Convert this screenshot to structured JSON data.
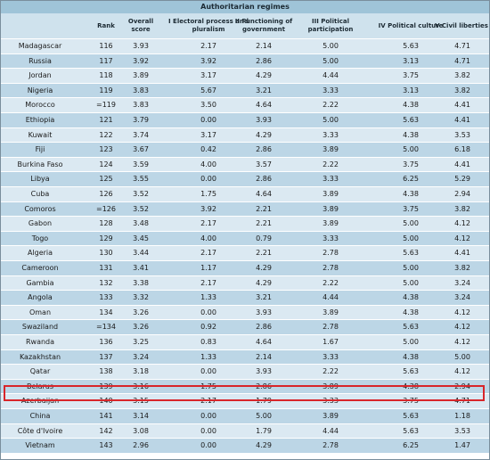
{
  "table": {
    "title": "Authoritarian regimes",
    "headers": {
      "rank": "Rank",
      "overall": "Overall score",
      "cat1": "I Electoral process and pluralism",
      "cat2": "II Functioning of government",
      "cat3": "III Political participation",
      "cat4": "IV Political culture",
      "cat5": "V Civil liberties"
    },
    "highlighted_country": "Belarus",
    "rows": [
      [
        "Madagascar",
        "116",
        "3.93",
        "2.17",
        "2.14",
        "5.00",
        "5.63",
        "4.71"
      ],
      [
        "Russia",
        "117",
        "3.92",
        "3.92",
        "2.86",
        "5.00",
        "3.13",
        "4.71"
      ],
      [
        "Jordan",
        "118",
        "3.89",
        "3.17",
        "4.29",
        "4.44",
        "3.75",
        "3.82"
      ],
      [
        "Nigeria",
        "119",
        "3.83",
        "5.67",
        "3.21",
        "3.33",
        "3.13",
        "3.82"
      ],
      [
        "Morocco",
        "=119",
        "3.83",
        "3.50",
        "4.64",
        "2.22",
        "4.38",
        "4.41"
      ],
      [
        "Ethiopia",
        "121",
        "3.79",
        "0.00",
        "3.93",
        "5.00",
        "5.63",
        "4.41"
      ],
      [
        "Kuwait",
        "122",
        "3.74",
        "3.17",
        "4.29",
        "3.33",
        "4.38",
        "3.53"
      ],
      [
        "Fiji",
        "123",
        "3.67",
        "0.42",
        "2.86",
        "3.89",
        "5.00",
        "6.18"
      ],
      [
        "Burkina Faso",
        "124",
        "3.59",
        "4.00",
        "3.57",
        "2.22",
        "3.75",
        "4.41"
      ],
      [
        "Libya",
        "125",
        "3.55",
        "0.00",
        "2.86",
        "3.33",
        "6.25",
        "5.29"
      ],
      [
        "Cuba",
        "126",
        "3.52",
        "1.75",
        "4.64",
        "3.89",
        "4.38",
        "2.94"
      ],
      [
        "Comoros",
        "=126",
        "3.52",
        "3.92",
        "2.21",
        "3.89",
        "3.75",
        "3.82"
      ],
      [
        "Gabon",
        "128",
        "3.48",
        "2.17",
        "2.21",
        "3.89",
        "5.00",
        "4.12"
      ],
      [
        "Togo",
        "129",
        "3.45",
        "4.00",
        "0.79",
        "3.33",
        "5.00",
        "4.12"
      ],
      [
        "Algeria",
        "130",
        "3.44",
        "2.17",
        "2.21",
        "2.78",
        "5.63",
        "4.41"
      ],
      [
        "Cameroon",
        "131",
        "3.41",
        "1.17",
        "4.29",
        "2.78",
        "5.00",
        "3.82"
      ],
      [
        "Gambia",
        "132",
        "3.38",
        "2.17",
        "4.29",
        "2.22",
        "5.00",
        "3.24"
      ],
      [
        "Angola",
        "133",
        "3.32",
        "1.33",
        "3.21",
        "4.44",
        "4.38",
        "3.24"
      ],
      [
        "Oman",
        "134",
        "3.26",
        "0.00",
        "3.93",
        "3.89",
        "4.38",
        "4.12"
      ],
      [
        "Swaziland",
        "=134",
        "3.26",
        "0.92",
        "2.86",
        "2.78",
        "5.63",
        "4.12"
      ],
      [
        "Rwanda",
        "136",
        "3.25",
        "0.83",
        "4.64",
        "1.67",
        "5.00",
        "4.12"
      ],
      [
        "Kazakhstan",
        "137",
        "3.24",
        "1.33",
        "2.14",
        "3.33",
        "4.38",
        "5.00"
      ],
      [
        "Qatar",
        "138",
        "3.18",
        "0.00",
        "3.93",
        "2.22",
        "5.63",
        "4.12"
      ],
      [
        "Belarus",
        "139",
        "3.16",
        "1.75",
        "2.86",
        "3.89",
        "4.38",
        "2.94"
      ],
      [
        "Azerbaijan",
        "140",
        "3.15",
        "2.17",
        "1.79",
        "3.33",
        "3.75",
        "4.71"
      ],
      [
        "China",
        "141",
        "3.14",
        "0.00",
        "5.00",
        "3.89",
        "5.63",
        "1.18"
      ],
      [
        "Côte d'Ivoire",
        "142",
        "3.08",
        "0.00",
        "1.79",
        "4.44",
        "5.63",
        "3.53"
      ],
      [
        "Vietnam",
        "143",
        "2.96",
        "0.00",
        "4.29",
        "2.78",
        "6.25",
        "1.47"
      ]
    ]
  }
}
